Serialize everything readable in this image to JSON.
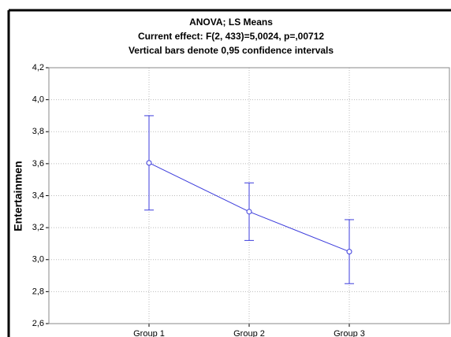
{
  "chart_data": {
    "type": "line",
    "title": "ANOVA; LS Means",
    "subtitle": "Current effect: F(2, 433)=5,0024, p=,00712",
    "note": "Vertical bars denote 0,95 confidence intervals",
    "y_label": "Entertainmen",
    "categories": [
      "Group 1",
      "Group 2",
      "Group 3"
    ],
    "series": [
      {
        "name": "Entertainmen",
        "color": "#3c3cdc",
        "values": [
          3.605,
          3.3,
          3.05
        ],
        "errors": [
          0.295,
          0.18,
          0.2
        ]
      }
    ],
    "ylim": [
      2.6,
      4.2
    ],
    "yticks": [
      {
        "value": 2.6,
        "label": "2,6"
      },
      {
        "value": 2.8,
        "label": "2,8"
      },
      {
        "value": 3.0,
        "label": "3,0"
      },
      {
        "value": 3.2,
        "label": "3,2"
      },
      {
        "value": 3.4,
        "label": "3,4"
      },
      {
        "value": 3.6,
        "label": "3,6"
      },
      {
        "value": 3.8,
        "label": "3,8"
      },
      {
        "value": 4.0,
        "label": "4,0"
      },
      {
        "value": 4.2,
        "label": "4,2"
      }
    ],
    "grid": true
  }
}
